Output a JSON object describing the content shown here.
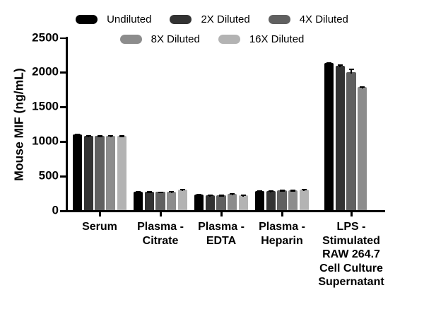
{
  "colors": {
    "background": "#ffffff",
    "axis": "#000000",
    "text": "#000000",
    "series_palette": [
      "#000000",
      "#333333",
      "#606060",
      "#8c8c8c",
      "#b3b3b3"
    ]
  },
  "legend": {
    "rows": [
      [
        "Undiluted",
        "2X Diluted",
        "4X Diluted"
      ],
      [
        "8X Diluted",
        "16X Diluted"
      ]
    ]
  },
  "chart_data": {
    "type": "bar",
    "title": "",
    "xlabel": "",
    "ylabel": "Mouse MIF (ng/mL)",
    "ylim": [
      0,
      2500
    ],
    "yticks": [
      0,
      500,
      1000,
      1500,
      2000,
      2500
    ],
    "grid": false,
    "legend_position": "top",
    "error_bars": "sd-up",
    "categories": [
      [
        "Serum"
      ],
      [
        "Plasma -",
        "Citrate"
      ],
      [
        "Plasma -",
        "EDTA"
      ],
      [
        "Plasma -",
        "Heparin"
      ],
      [
        "LPS -",
        "Stimulated",
        "RAW 264.7",
        "Cell Culture",
        "Supernatant"
      ]
    ],
    "series": [
      {
        "name": "Undiluted",
        "color": "#000000",
        "values": [
          1100,
          278,
          238,
          290,
          2140
        ],
        "errors": [
          15,
          8,
          8,
          8,
          12
        ]
      },
      {
        "name": "2X Diluted",
        "color": "#333333",
        "values": [
          1085,
          275,
          230,
          288,
          2100
        ],
        "errors": [
          12,
          8,
          8,
          10,
          18
        ]
      },
      {
        "name": "4X Diluted",
        "color": "#606060",
        "values": [
          1080,
          272,
          222,
          292,
          2000
        ],
        "errors": [
          12,
          8,
          12,
          10,
          60
        ]
      },
      {
        "name": "8X Diluted",
        "color": "#8c8c8c",
        "values": [
          1085,
          280,
          250,
          295,
          1790
        ],
        "errors": [
          12,
          8,
          10,
          10,
          12
        ]
      },
      {
        "name": "16X Diluted",
        "color": "#b3b3b3",
        "values": [
          1082,
          308,
          228,
          308,
          null
        ],
        "errors": [
          12,
          10,
          10,
          10,
          null
        ]
      }
    ]
  }
}
